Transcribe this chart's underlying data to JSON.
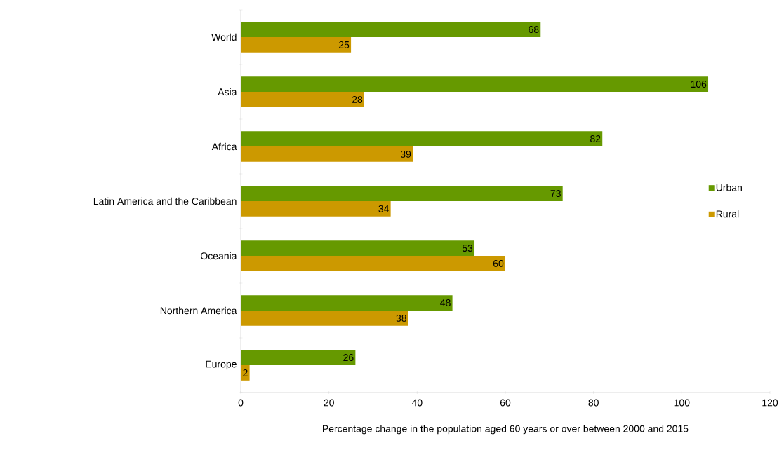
{
  "chart_data": {
    "type": "bar",
    "orientation": "horizontal",
    "xlabel": "Percentage change in the population aged 60 years or over between 2000 and 2015",
    "categories": [
      "World",
      "Asia",
      "Africa",
      "Latin America and the Caribbean",
      "Oceania",
      "Northern America",
      "Europe"
    ],
    "series": [
      {
        "name": "Urban",
        "color": "#669900",
        "values": [
          68,
          106,
          82,
          73,
          53,
          48,
          26
        ]
      },
      {
        "name": "Rural",
        "color": "#cc9900",
        "values": [
          25,
          28,
          39,
          34,
          60,
          38,
          2
        ]
      }
    ],
    "xlim": [
      0,
      120
    ],
    "xticks": [
      0,
      20,
      40,
      60,
      80,
      100,
      120
    ],
    "data_labels": true,
    "legend": "right",
    "grid": false
  }
}
